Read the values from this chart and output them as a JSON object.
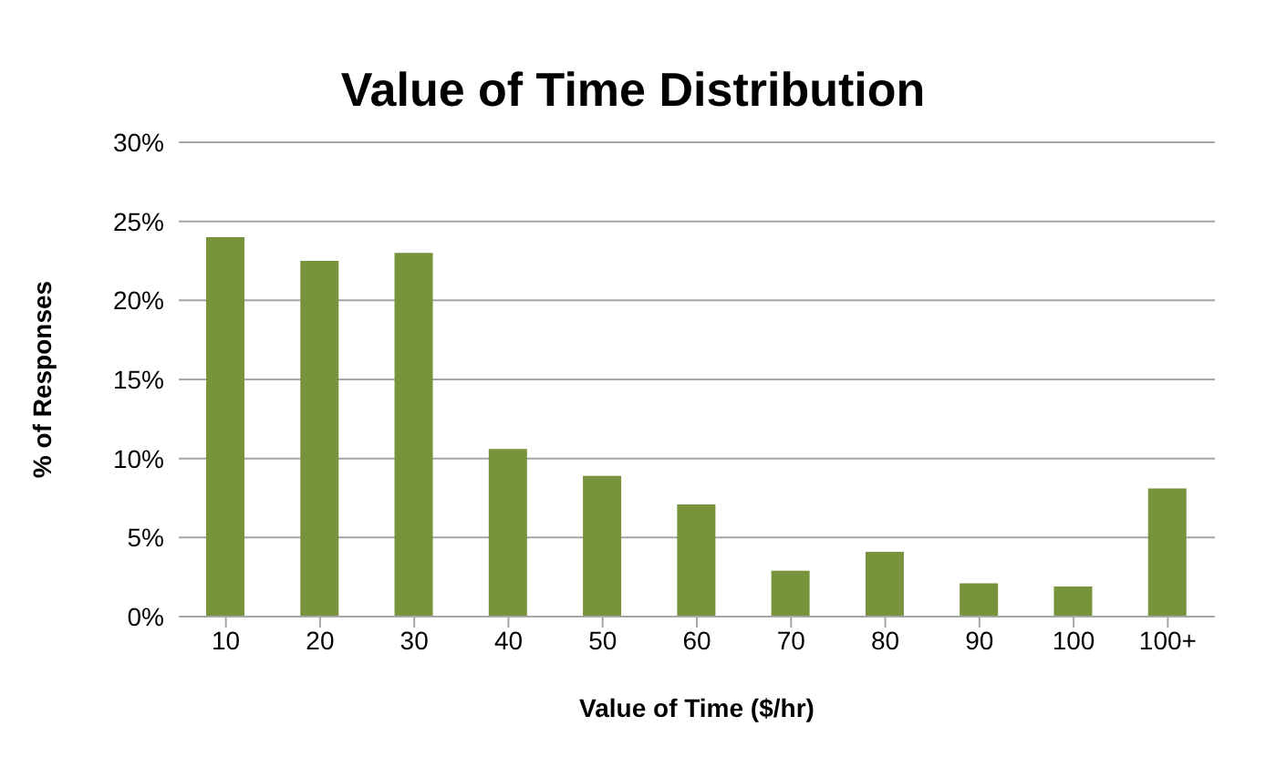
{
  "chart_data": {
    "type": "bar",
    "title": "Value of Time Distribution",
    "xlabel": "Value of Time ($/hr)",
    "ylabel": "% of Responses",
    "categories": [
      "10",
      "20",
      "30",
      "40",
      "50",
      "60",
      "70",
      "80",
      "90",
      "100",
      "100+"
    ],
    "values": [
      24,
      22.5,
      23,
      10.6,
      8.9,
      7.1,
      2.9,
      4.1,
      2.1,
      1.9,
      8.1
    ],
    "color": "#77933c",
    "ylim": [
      0,
      30
    ],
    "yticks": [
      {
        "value": 0,
        "label": "0%"
      },
      {
        "value": 5,
        "label": "5%"
      },
      {
        "value": 10,
        "label": "10%"
      },
      {
        "value": 15,
        "label": "15%"
      },
      {
        "value": 20,
        "label": "20%"
      },
      {
        "value": 25,
        "label": "25%"
      },
      {
        "value": 30,
        "label": "30%"
      }
    ],
    "grid": "y",
    "legend": false
  }
}
